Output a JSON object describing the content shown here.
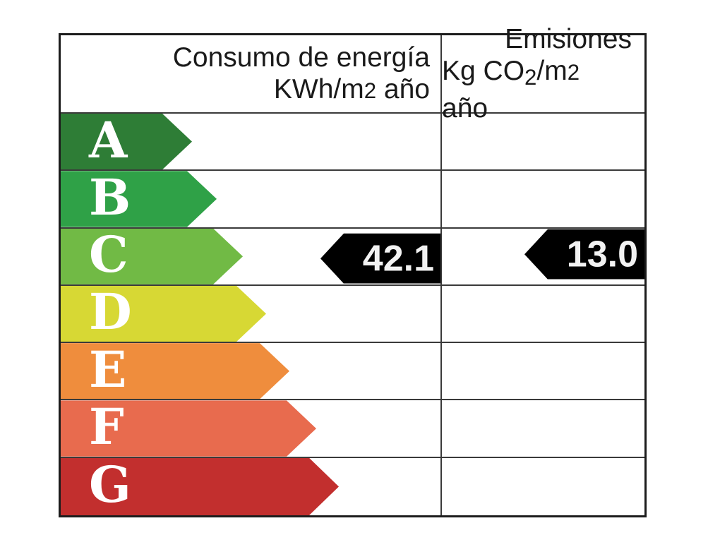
{
  "chart_data": {
    "type": "energy-rating-label",
    "description": "Spanish energy efficiency certificate scale A-G with consumption and emissions markers",
    "categories": [
      "A",
      "B",
      "C",
      "D",
      "E",
      "F",
      "G"
    ],
    "ratings": [
      {
        "letter": "A",
        "color": "#2e7d36"
      },
      {
        "letter": "B",
        "color": "#2fa147"
      },
      {
        "letter": "C",
        "color": "#71ba45"
      },
      {
        "letter": "D",
        "color": "#d7d834"
      },
      {
        "letter": "E",
        "color": "#ef8d3d"
      },
      {
        "letter": "F",
        "color": "#e86b4e"
      },
      {
        "letter": "G",
        "color": "#c22f2e"
      }
    ],
    "columns": [
      {
        "header": "Consumo de energía",
        "unit": "KWh/m2 año",
        "unit_parts": [
          {
            "t": "KWh/m"
          },
          {
            "t": "2"
          },
          {
            "t": " año"
          }
        ],
        "value": 42.1,
        "value_label": "42.1",
        "rating": "C"
      },
      {
        "header": "Emisiones",
        "unit": "Kg CO2/m2 año",
        "unit_parts": [
          {
            "t": "Kg CO"
          },
          {
            "t": "2"
          },
          {
            "t": "/m"
          },
          {
            "t": "2"
          },
          {
            "t": " año"
          }
        ],
        "value": 13.0,
        "value_label": "13.0",
        "rating": "C"
      }
    ],
    "marker_color": "#000000",
    "marker_text_color": "#ffffff",
    "grid_line_color": "#3a3a3a",
    "header_text_color": "#1a1a1a",
    "legend_position": "none",
    "grid": true
  }
}
